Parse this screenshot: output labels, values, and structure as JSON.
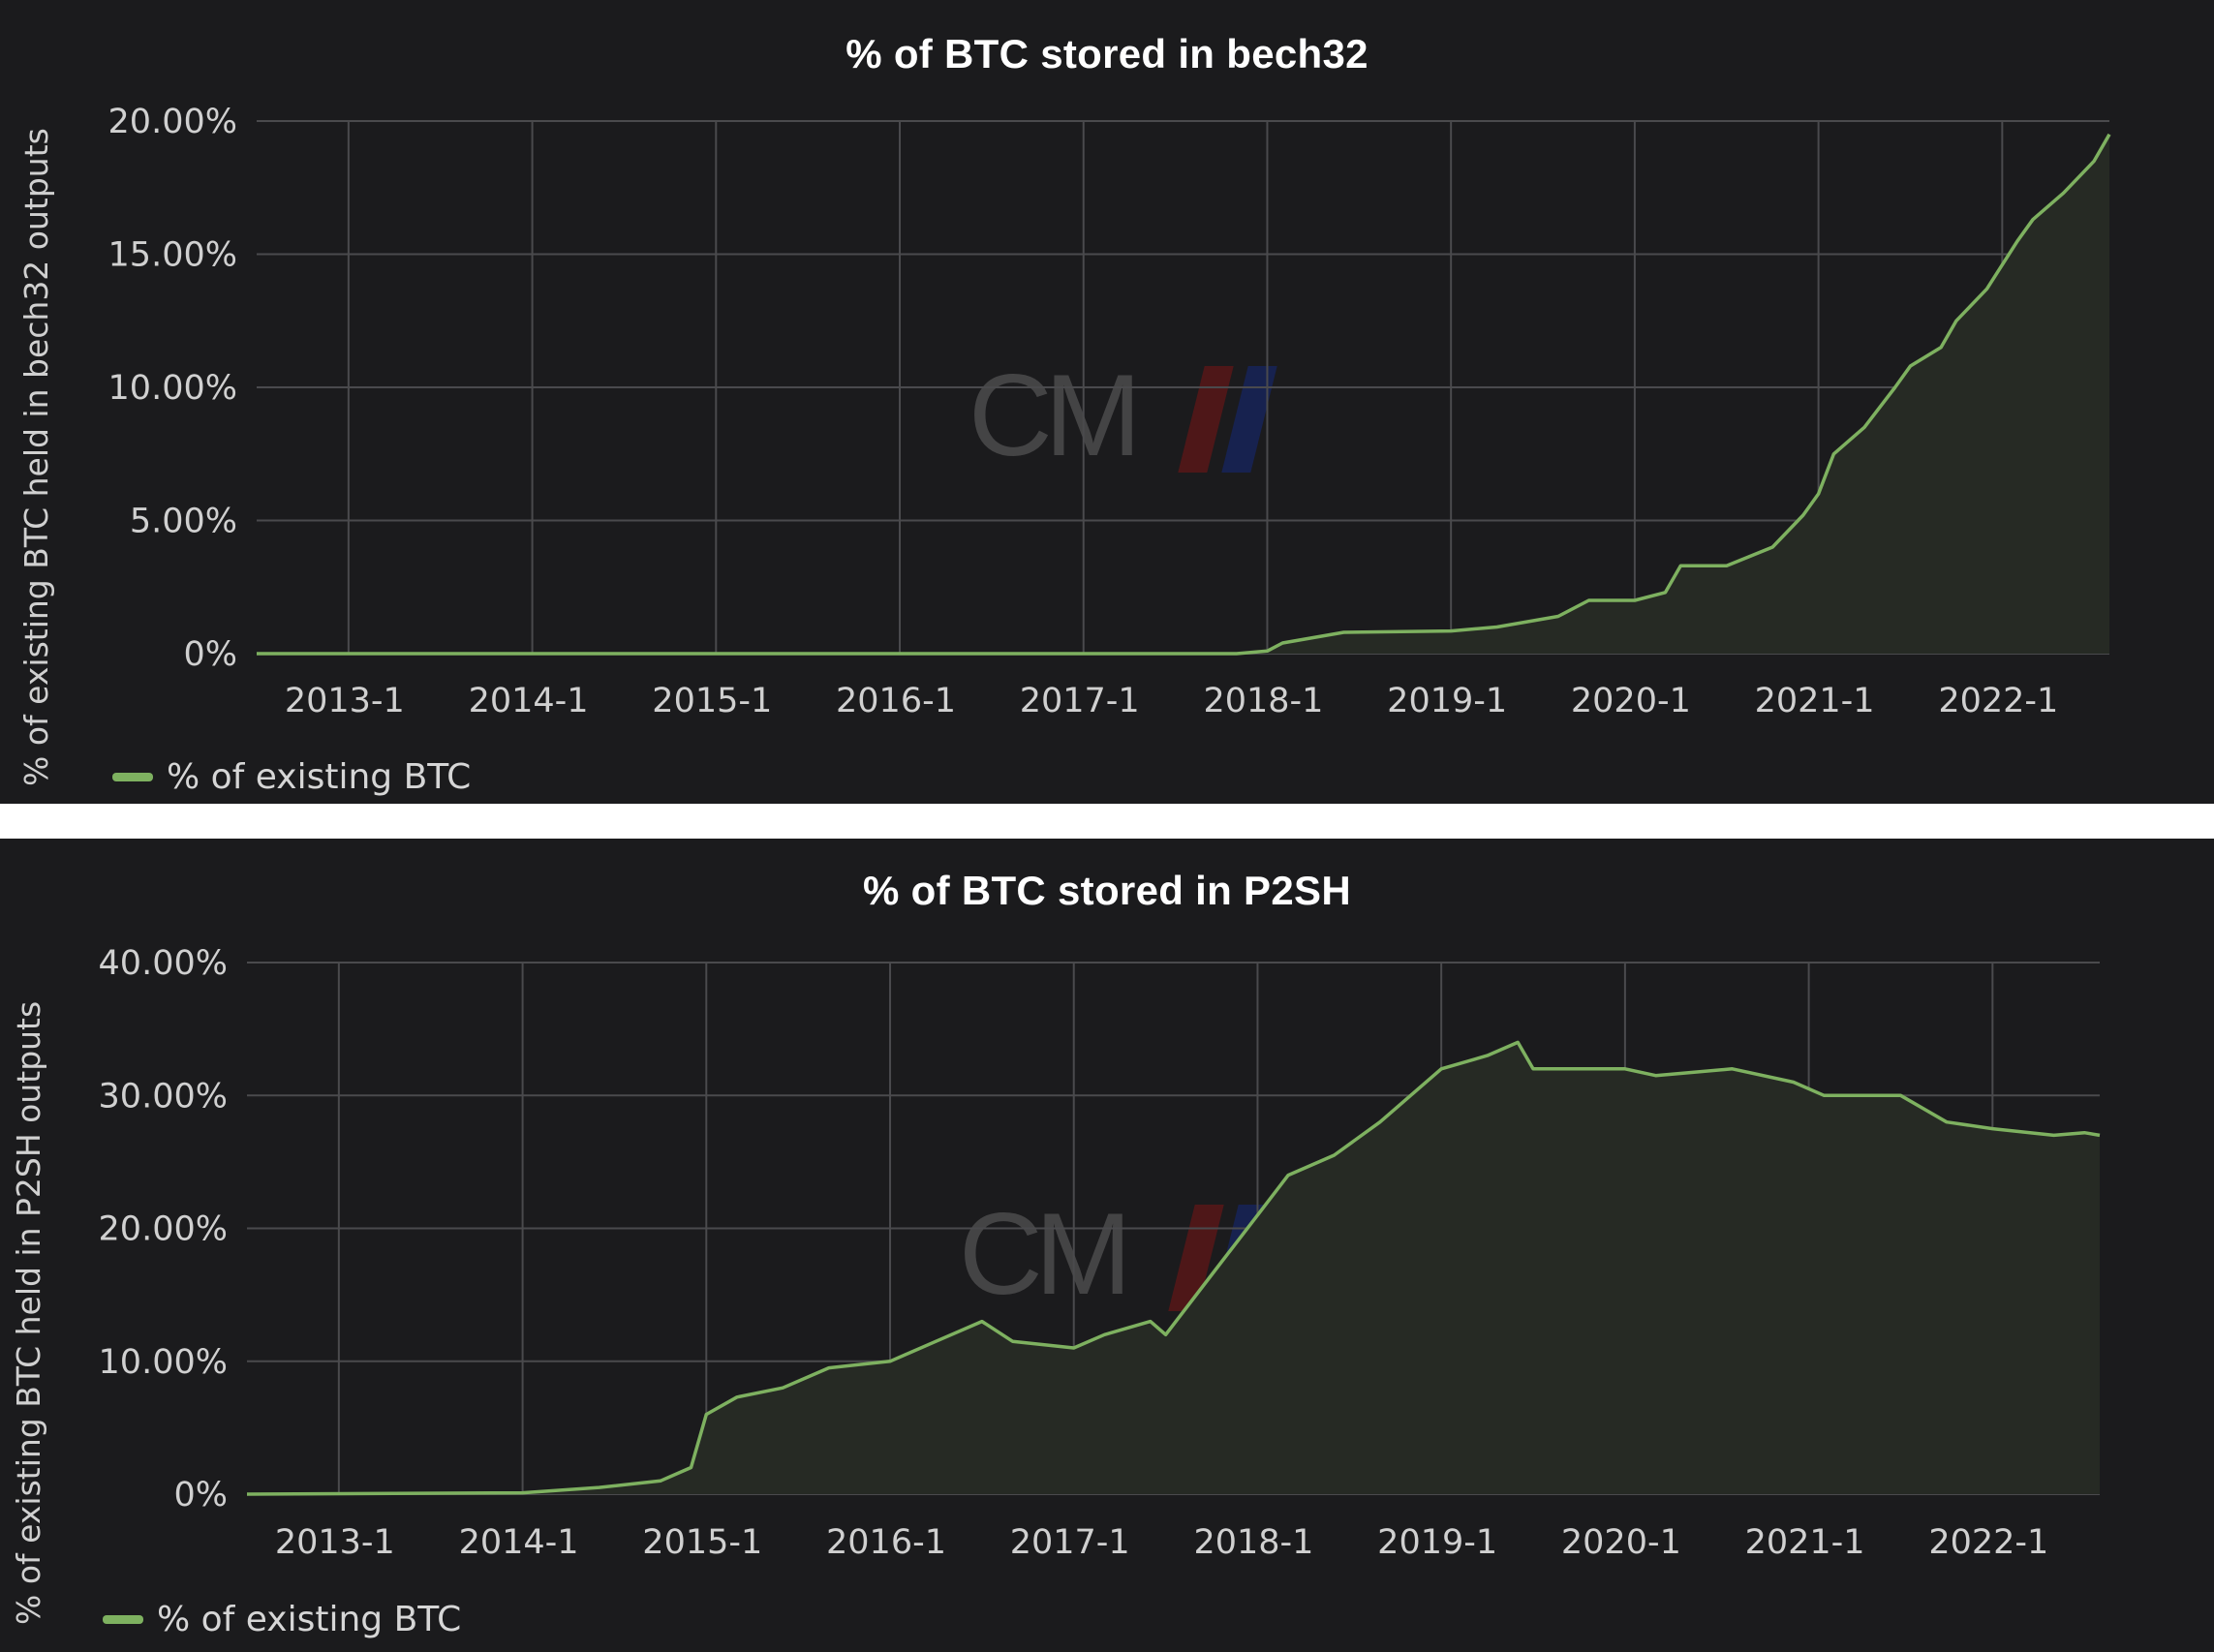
{
  "colors": {
    "background": "#1b1b1d",
    "grid": "#4a4a4d",
    "line": "#7eb160",
    "fill": "#262a24",
    "text": "#d0d0d0"
  },
  "watermark": {
    "text": "CM"
  },
  "chart_data": [
    {
      "type": "area",
      "title": "% of BTC stored in bech32",
      "ylabel": "% of existing BTC held in bech32 outputs",
      "legend": {
        "label": "% of existing BTC",
        "placement": "bottom-left"
      },
      "x_ticks": [
        "2013-1",
        "2014-1",
        "2015-1",
        "2016-1",
        "2017-1",
        "2018-1",
        "2019-1",
        "2020-1",
        "2021-1",
        "2022-1"
      ],
      "y_ticks": [
        "0%",
        "5.00%",
        "10.00%",
        "15.00%",
        "20.00%"
      ],
      "xlim": [
        "2012-07",
        "2022-08"
      ],
      "ylim": [
        0,
        20
      ],
      "grid": true,
      "series": [
        {
          "name": "% of existing BTC",
          "points": [
            [
              "2012-07",
              0
            ],
            [
              "2017-11",
              0
            ],
            [
              "2018-01",
              0.1
            ],
            [
              "2018-02",
              0.4
            ],
            [
              "2018-06",
              0.8
            ],
            [
              "2019-01",
              0.85
            ],
            [
              "2019-04",
              1.0
            ],
            [
              "2019-08",
              1.4
            ],
            [
              "2019-10",
              2.0
            ],
            [
              "2020-01",
              2.0
            ],
            [
              "2020-03",
              2.3
            ],
            [
              "2020-04",
              3.3
            ],
            [
              "2020-07",
              3.3
            ],
            [
              "2020-10",
              4.0
            ],
            [
              "2020-12",
              5.2
            ],
            [
              "2021-01",
              6.0
            ],
            [
              "2021-02",
              7.5
            ],
            [
              "2021-04",
              8.5
            ],
            [
              "2021-06",
              10.0
            ],
            [
              "2021-07",
              10.8
            ],
            [
              "2021-09",
              11.5
            ],
            [
              "2021-10",
              12.5
            ],
            [
              "2021-12",
              13.7
            ],
            [
              "2022-02",
              15.5
            ],
            [
              "2022-03",
              16.3
            ],
            [
              "2022-05",
              17.3
            ],
            [
              "2022-07",
              18.5
            ],
            [
              "2022-08",
              19.5
            ]
          ]
        }
      ]
    },
    {
      "type": "area",
      "title": "% of BTC stored in P2SH",
      "ylabel": "% of existing BTC held in P2SH outputs",
      "legend": {
        "label": "% of existing BTC",
        "placement": "bottom-left"
      },
      "x_ticks": [
        "2013-1",
        "2014-1",
        "2015-1",
        "2016-1",
        "2017-1",
        "2018-1",
        "2019-1",
        "2020-1",
        "2021-1",
        "2022-1"
      ],
      "y_ticks": [
        "0%",
        "10.00%",
        "20.00%",
        "30.00%",
        "40.00%"
      ],
      "xlim": [
        "2012-07",
        "2022-08"
      ],
      "ylim": [
        0,
        40
      ],
      "grid": true,
      "series": [
        {
          "name": "% of existing BTC",
          "points": [
            [
              "2012-07",
              0
            ],
            [
              "2014-01",
              0.1
            ],
            [
              "2014-06",
              0.5
            ],
            [
              "2014-10",
              1.0
            ],
            [
              "2014-12",
              2.0
            ],
            [
              "2015-01",
              6.0
            ],
            [
              "2015-03",
              7.3
            ],
            [
              "2015-06",
              8.0
            ],
            [
              "2015-09",
              9.5
            ],
            [
              "2016-01",
              10.0
            ],
            [
              "2016-04",
              11.5
            ],
            [
              "2016-07",
              13.0
            ],
            [
              "2016-09",
              11.5
            ],
            [
              "2017-01",
              11.0
            ],
            [
              "2017-03",
              12.0
            ],
            [
              "2017-06",
              13.0
            ],
            [
              "2017-07",
              12.0
            ],
            [
              "2017-10",
              16.5
            ],
            [
              "2018-01",
              21.0
            ],
            [
              "2018-03",
              24.0
            ],
            [
              "2018-06",
              25.5
            ],
            [
              "2018-09",
              28.0
            ],
            [
              "2019-01",
              32.0
            ],
            [
              "2019-04",
              33.0
            ],
            [
              "2019-06",
              34.0
            ],
            [
              "2019-07",
              32.0
            ],
            [
              "2020-01",
              32.0
            ],
            [
              "2020-03",
              31.5
            ],
            [
              "2020-08",
              32.0
            ],
            [
              "2020-12",
              31.0
            ],
            [
              "2021-02",
              30.0
            ],
            [
              "2021-07",
              30.0
            ],
            [
              "2021-10",
              28.0
            ],
            [
              "2022-01",
              27.5
            ],
            [
              "2022-05",
              27.0
            ],
            [
              "2022-07",
              27.2
            ],
            [
              "2022-08",
              27.0
            ]
          ]
        }
      ]
    }
  ]
}
